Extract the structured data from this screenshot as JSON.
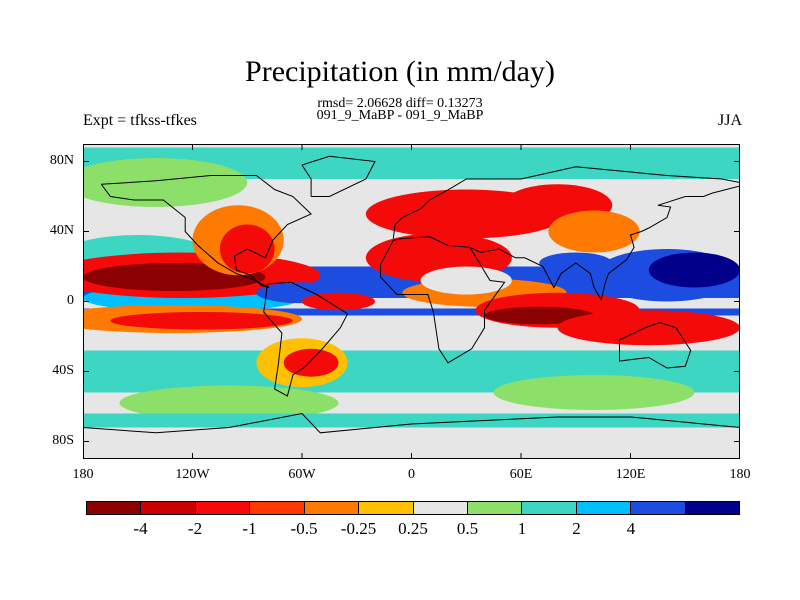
{
  "title": "Precipitation (in mm/day)",
  "stats": "rmsd= 2.06628 diff= 0.13273",
  "subtitle": "091_9_MaBP - 091_9_MaBP",
  "left_label": "Expt = tfkss-tfkes",
  "right_label": "JJA",
  "map": {
    "lon_range": [
      -180,
      180
    ],
    "lat_range": [
      -90,
      90
    ],
    "y_ticks": [
      {
        "lat": 80,
        "label": "80N"
      },
      {
        "lat": 40,
        "label": "40N"
      },
      {
        "lat": 0,
        "label": "0"
      },
      {
        "lat": -40,
        "label": "40S"
      },
      {
        "lat": -80,
        "label": "80S"
      }
    ],
    "x_ticks": [
      {
        "lon": -180,
        "label": "180"
      },
      {
        "lon": -120,
        "label": "120W"
      },
      {
        "lon": -60,
        "label": "60W"
      },
      {
        "lon": 0,
        "label": "0"
      },
      {
        "lon": 60,
        "label": "60E"
      },
      {
        "lon": 120,
        "label": "120E"
      },
      {
        "lon": 180,
        "label": "180"
      }
    ],
    "background_color": "#e6e6e6",
    "features": [
      {
        "type": "rect",
        "lon": [
          -180,
          180
        ],
        "lat": [
          20,
          2
        ],
        "color": "#1c4ce0"
      },
      {
        "type": "rect",
        "lon": [
          -180,
          180
        ],
        "lat": [
          -4,
          -8
        ],
        "color": "#1c4ce0"
      },
      {
        "type": "rect",
        "lon": [
          -180,
          180
        ],
        "lat": [
          -28,
          -52
        ],
        "color": "#3cd6c2"
      },
      {
        "type": "rect",
        "lon": [
          -180,
          180
        ],
        "lat": [
          88,
          70
        ],
        "color": "#3cd6c2"
      },
      {
        "type": "ellipse",
        "lon": -140,
        "lat": 68,
        "rlon": 50,
        "rlat": 14,
        "color": "#8ce06a"
      },
      {
        "type": "ellipse",
        "lon": -120,
        "lat": 2,
        "rlon": 60,
        "rlat": 8,
        "color": "#00bfff"
      },
      {
        "type": "ellipse",
        "lon": -150,
        "lat": 24,
        "rlon": 45,
        "rlat": 14,
        "color": "#3cd6c2"
      },
      {
        "type": "ellipse",
        "lon": -125,
        "lat": 15,
        "rlon": 75,
        "rlat": 13,
        "color": "#f50a0a"
      },
      {
        "type": "ellipse",
        "lon": -130,
        "lat": 14,
        "rlon": 50,
        "rlat": 8,
        "color": "#8b0000"
      },
      {
        "type": "ellipse",
        "lon": -95,
        "lat": 35,
        "rlon": 25,
        "rlat": 20,
        "color": "#ff7a00"
      },
      {
        "type": "ellipse",
        "lon": -90,
        "lat": 30,
        "rlon": 15,
        "rlat": 14,
        "color": "#f50a0a"
      },
      {
        "type": "ellipse",
        "lon": -130,
        "lat": -10,
        "rlon": 70,
        "rlat": 8,
        "color": "#ff7a00"
      },
      {
        "type": "ellipse",
        "lon": -115,
        "lat": -11,
        "rlon": 50,
        "rlat": 5,
        "color": "#f50a0a"
      },
      {
        "type": "ellipse",
        "lon": -60,
        "lat": 5,
        "rlon": 25,
        "rlat": 6,
        "color": "#1c4ce0"
      },
      {
        "type": "ellipse",
        "lon": -40,
        "lat": 0,
        "rlon": 20,
        "rlat": 5,
        "color": "#f50a0a"
      },
      {
        "type": "ellipse",
        "lon": -60,
        "lat": -35,
        "rlon": 25,
        "rlat": 14,
        "color": "#ffc000"
      },
      {
        "type": "ellipse",
        "lon": -55,
        "lat": -35,
        "rlon": 15,
        "rlat": 8,
        "color": "#f50a0a"
      },
      {
        "type": "ellipse",
        "lon": 30,
        "lat": 50,
        "rlon": 55,
        "rlat": 14,
        "color": "#f50a0a"
      },
      {
        "type": "ellipse",
        "lon": 15,
        "lat": 25,
        "rlon": 40,
        "rlat": 14,
        "color": "#f50a0a"
      },
      {
        "type": "ellipse",
        "lon": 80,
        "lat": 55,
        "rlon": 30,
        "rlat": 12,
        "color": "#f50a0a"
      },
      {
        "type": "ellipse",
        "lon": 100,
        "lat": 40,
        "rlon": 25,
        "rlat": 12,
        "color": "#ff7a00"
      },
      {
        "type": "ellipse",
        "lon": 40,
        "lat": 5,
        "rlon": 45,
        "rlat": 8,
        "color": "#ff7a00"
      },
      {
        "type": "ellipse",
        "lon": 80,
        "lat": -5,
        "rlon": 45,
        "rlat": 10,
        "color": "#f50a0a"
      },
      {
        "type": "ellipse",
        "lon": 70,
        "lat": -8,
        "rlon": 30,
        "rlat": 5,
        "color": "#8b0000"
      },
      {
        "type": "ellipse",
        "lon": 140,
        "lat": 15,
        "rlon": 40,
        "rlat": 15,
        "color": "#1c4ce0"
      },
      {
        "type": "ellipse",
        "lon": 155,
        "lat": 18,
        "rlon": 25,
        "rlat": 10,
        "color": "#00008b"
      },
      {
        "type": "ellipse",
        "lon": 130,
        "lat": -15,
        "rlon": 50,
        "rlat": 10,
        "color": "#f50a0a"
      },
      {
        "type": "ellipse",
        "lon": 90,
        "lat": 22,
        "rlon": 20,
        "rlat": 6,
        "color": "#1c4ce0"
      },
      {
        "type": "ellipse",
        "lon": 30,
        "lat": 12,
        "rlon": 25,
        "rlat": 8,
        "color": "#e6e6e6"
      },
      {
        "type": "ellipse",
        "lon": 100,
        "lat": -52,
        "rlon": 55,
        "rlat": 10,
        "color": "#8ce06a"
      },
      {
        "type": "ellipse",
        "lon": -100,
        "lat": -58,
        "rlon": 60,
        "rlat": 10,
        "color": "#8ce06a"
      },
      {
        "type": "rect",
        "lon": [
          -180,
          180
        ],
        "lat": [
          -64,
          -90
        ],
        "color": "#3cd6c2"
      },
      {
        "type": "rect",
        "lon": [
          -180,
          180
        ],
        "lat": [
          -72,
          -90
        ],
        "color": "#e6e6e6"
      }
    ],
    "coastlines": [
      [
        [
          -170,
          67
        ],
        [
          -140,
          69
        ],
        [
          -110,
          72
        ],
        [
          -85,
          72
        ],
        [
          -75,
          64
        ],
        [
          -65,
          60
        ],
        [
          -55,
          50
        ],
        [
          -68,
          44
        ],
        [
          -76,
          35
        ],
        [
          -80,
          25
        ],
        [
          -90,
          30
        ],
        [
          -97,
          26
        ],
        [
          -96,
          18
        ],
        [
          -88,
          15
        ],
        [
          -82,
          9
        ],
        [
          -78,
          8
        ],
        [
          -88,
          13
        ],
        [
          -96,
          16
        ],
        [
          -106,
          22
        ],
        [
          -117,
          32
        ],
        [
          -124,
          40
        ],
        [
          -124,
          48
        ],
        [
          -136,
          58
        ],
        [
          -152,
          58
        ],
        [
          -165,
          60
        ],
        [
          -170,
          67
        ]
      ],
      [
        [
          -79,
          10
        ],
        [
          -66,
          11
        ],
        [
          -52,
          4
        ],
        [
          -35,
          -7
        ],
        [
          -39,
          -15
        ],
        [
          -48,
          -26
        ],
        [
          -58,
          -37
        ],
        [
          -65,
          -42
        ],
        [
          -68,
          -54
        ],
        [
          -75,
          -50
        ],
        [
          -73,
          -36
        ],
        [
          -71,
          -18
        ],
        [
          -81,
          -6
        ],
        [
          -80,
          1
        ],
        [
          -79,
          10
        ]
      ],
      [
        [
          -17,
          21
        ],
        [
          -10,
          35
        ],
        [
          -5,
          36
        ],
        [
          10,
          37
        ],
        [
          20,
          32
        ],
        [
          32,
          31
        ],
        [
          43,
          12
        ],
        [
          51,
          11
        ],
        [
          40,
          -5
        ],
        [
          40,
          -15
        ],
        [
          33,
          -27
        ],
        [
          20,
          -35
        ],
        [
          15,
          -27
        ],
        [
          12,
          -6
        ],
        [
          9,
          4
        ],
        [
          -8,
          4
        ],
        [
          -17,
          14
        ],
        [
          -17,
          21
        ]
      ],
      [
        [
          -10,
          36
        ],
        [
          -9,
          44
        ],
        [
          -5,
          48
        ],
        [
          5,
          53
        ],
        [
          10,
          58
        ],
        [
          22,
          65
        ],
        [
          30,
          70
        ],
        [
          60,
          70
        ],
        [
          90,
          77
        ],
        [
          110,
          75
        ],
        [
          140,
          72
        ],
        [
          170,
          70
        ],
        [
          180,
          68
        ]
      ],
      [
        [
          32,
          31
        ],
        [
          38,
          28
        ],
        [
          48,
          30
        ],
        [
          57,
          25
        ],
        [
          62,
          25
        ],
        [
          72,
          20
        ],
        [
          78,
          8
        ],
        [
          82,
          16
        ],
        [
          90,
          22
        ],
        [
          98,
          16
        ],
        [
          100,
          8
        ],
        [
          104,
          1
        ],
        [
          106,
          10
        ],
        [
          108,
          16
        ],
        [
          118,
          24
        ],
        [
          122,
          31
        ],
        [
          120,
          38
        ],
        [
          126,
          40
        ],
        [
          130,
          42
        ],
        [
          140,
          48
        ],
        [
          142,
          54
        ],
        [
          135,
          55
        ],
        [
          150,
          60
        ],
        [
          160,
          60
        ],
        [
          165,
          62
        ],
        [
          180,
          66
        ]
      ],
      [
        [
          114,
          -22
        ],
        [
          114,
          -34
        ],
        [
          130,
          -32
        ],
        [
          140,
          -38
        ],
        [
          150,
          -37
        ],
        [
          153,
          -28
        ],
        [
          145,
          -15
        ],
        [
          136,
          -12
        ],
        [
          128,
          -15
        ],
        [
          114,
          -22
        ]
      ],
      [
        [
          -55,
          60
        ],
        [
          -45,
          60
        ],
        [
          -25,
          70
        ],
        [
          -20,
          80
        ],
        [
          -45,
          83
        ],
        [
          -60,
          78
        ],
        [
          -55,
          70
        ],
        [
          -55,
          60
        ]
      ],
      [
        [
          -180,
          -72
        ],
        [
          -140,
          -75
        ],
        [
          -100,
          -72
        ],
        [
          -60,
          -64
        ],
        [
          -50,
          -75
        ],
        [
          -20,
          -72
        ],
        [
          0,
          -70
        ],
        [
          40,
          -68
        ],
        [
          80,
          -66
        ],
        [
          120,
          -66
        ],
        [
          160,
          -70
        ],
        [
          180,
          -72
        ]
      ]
    ]
  },
  "colorbar": {
    "colors": [
      "#8b0000",
      "#cd0000",
      "#f50a0a",
      "#ff3800",
      "#ff7a00",
      "#ffc000",
      "#e6e6e6",
      "#8ce06a",
      "#3cd6c2",
      "#00bfff",
      "#1c4ce0",
      "#00008b"
    ],
    "labels": [
      "-4",
      "-2",
      "-1",
      "-0.5",
      "-0.25",
      "0.25",
      "0.5",
      "1",
      "2",
      "4"
    ]
  }
}
